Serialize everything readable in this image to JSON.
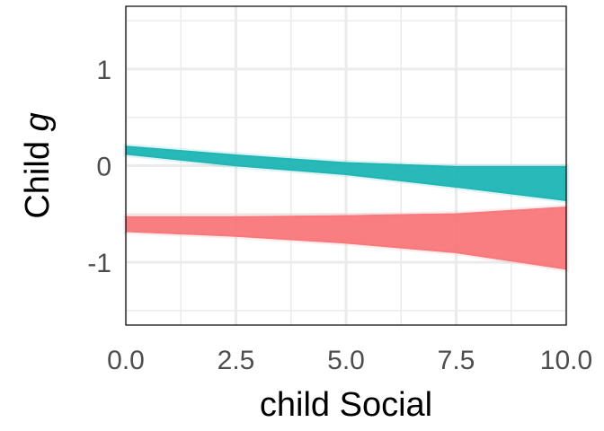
{
  "chart_data": {
    "type": "area",
    "title": "",
    "xlabel": "child Social",
    "ylabel": "Child g",
    "ylabel_parts": {
      "main": "Child ",
      "italic": "g"
    },
    "xlim": [
      0,
      10
    ],
    "ylim": [
      -1.65,
      1.65
    ],
    "x_ticks": [
      0.0,
      2.5,
      5.0,
      7.5,
      10.0
    ],
    "x_tick_labels": [
      "0.0",
      "2.5",
      "5.0",
      "7.5",
      "10.0"
    ],
    "y_ticks": [
      -1,
      0,
      1
    ],
    "y_tick_labels": [
      "-1",
      "0",
      "1"
    ],
    "grid": true,
    "legend": "none",
    "series": [
      {
        "color": "#1fb5b5",
        "x": [
          0,
          2.5,
          5.0,
          7.5,
          10.0
        ],
        "upper": [
          0.2,
          0.11,
          0.03,
          -0.01,
          -0.01
        ],
        "lower": [
          0.12,
          0.0,
          -0.09,
          -0.22,
          -0.36
        ]
      },
      {
        "color": "#f8777a",
        "x": [
          0,
          2.5,
          5.0,
          7.5,
          10.0
        ],
        "upper": [
          -0.53,
          -0.53,
          -0.52,
          -0.5,
          -0.43
        ],
        "lower": [
          -0.68,
          -0.73,
          -0.8,
          -0.9,
          -1.07
        ]
      }
    ]
  }
}
